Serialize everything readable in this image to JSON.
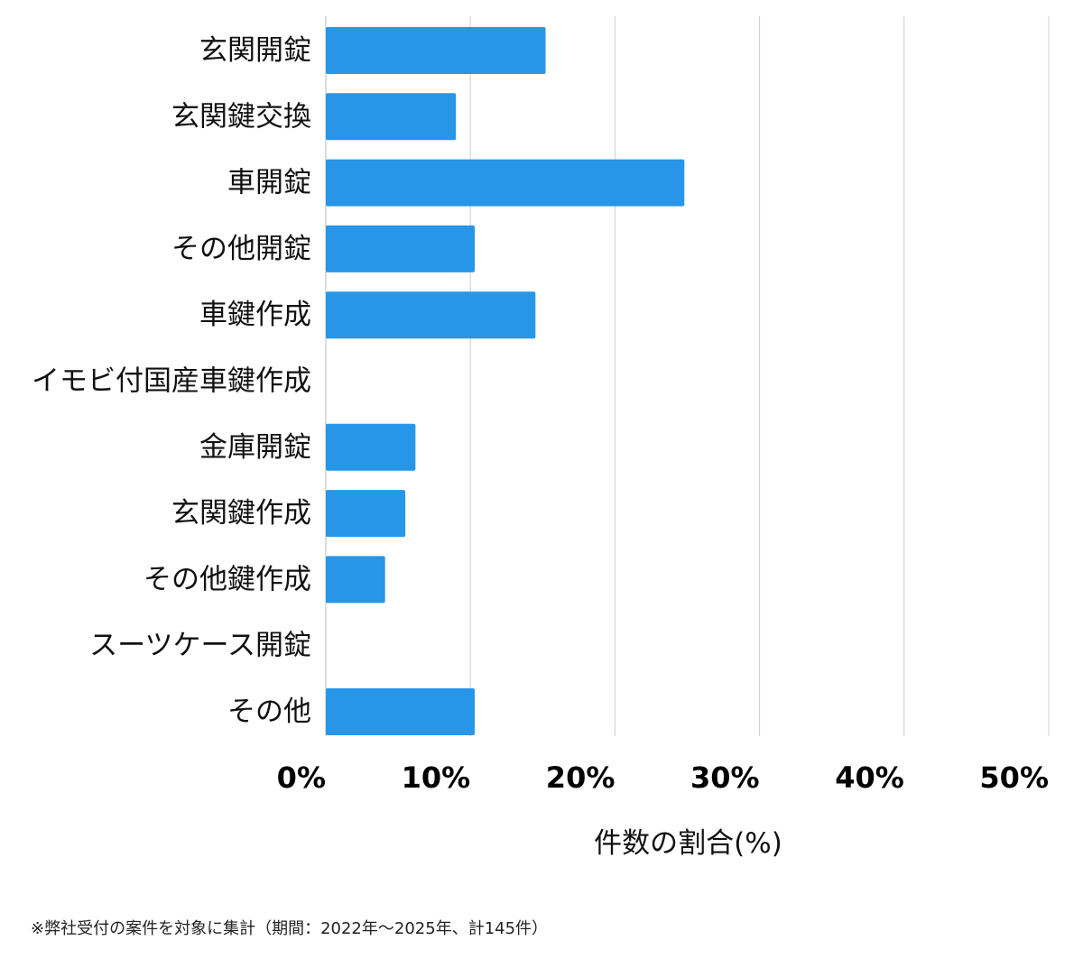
{
  "chart_data": {
    "type": "bar",
    "orientation": "horizontal",
    "categories": [
      "玄関開錠",
      "玄関鍵交換",
      "車開錠",
      "その他開錠",
      "車鍵作成",
      "イモビ付国産車鍵作成",
      "金庫開錠",
      "玄関鍵作成",
      "その他鍵作成",
      "スーツケース開錠",
      "その他"
    ],
    "values": [
      15.2,
      9.0,
      24.8,
      10.3,
      14.5,
      0,
      6.2,
      5.5,
      4.1,
      0,
      10.3
    ],
    "xlim": [
      0,
      50
    ],
    "xticks": [
      0,
      10,
      20,
      30,
      40,
      50
    ],
    "xtick_labels": [
      "0%",
      "10%",
      "20%",
      "30%",
      "40%",
      "50%"
    ],
    "xlabel": "件数の割合(%)",
    "bar_color": "#2896e8",
    "grid": "vertical",
    "grid_color": "#cccccc"
  },
  "footnote": "※弊社受付の案件を対象に集計（期間：2022年〜2025年、計145件）"
}
